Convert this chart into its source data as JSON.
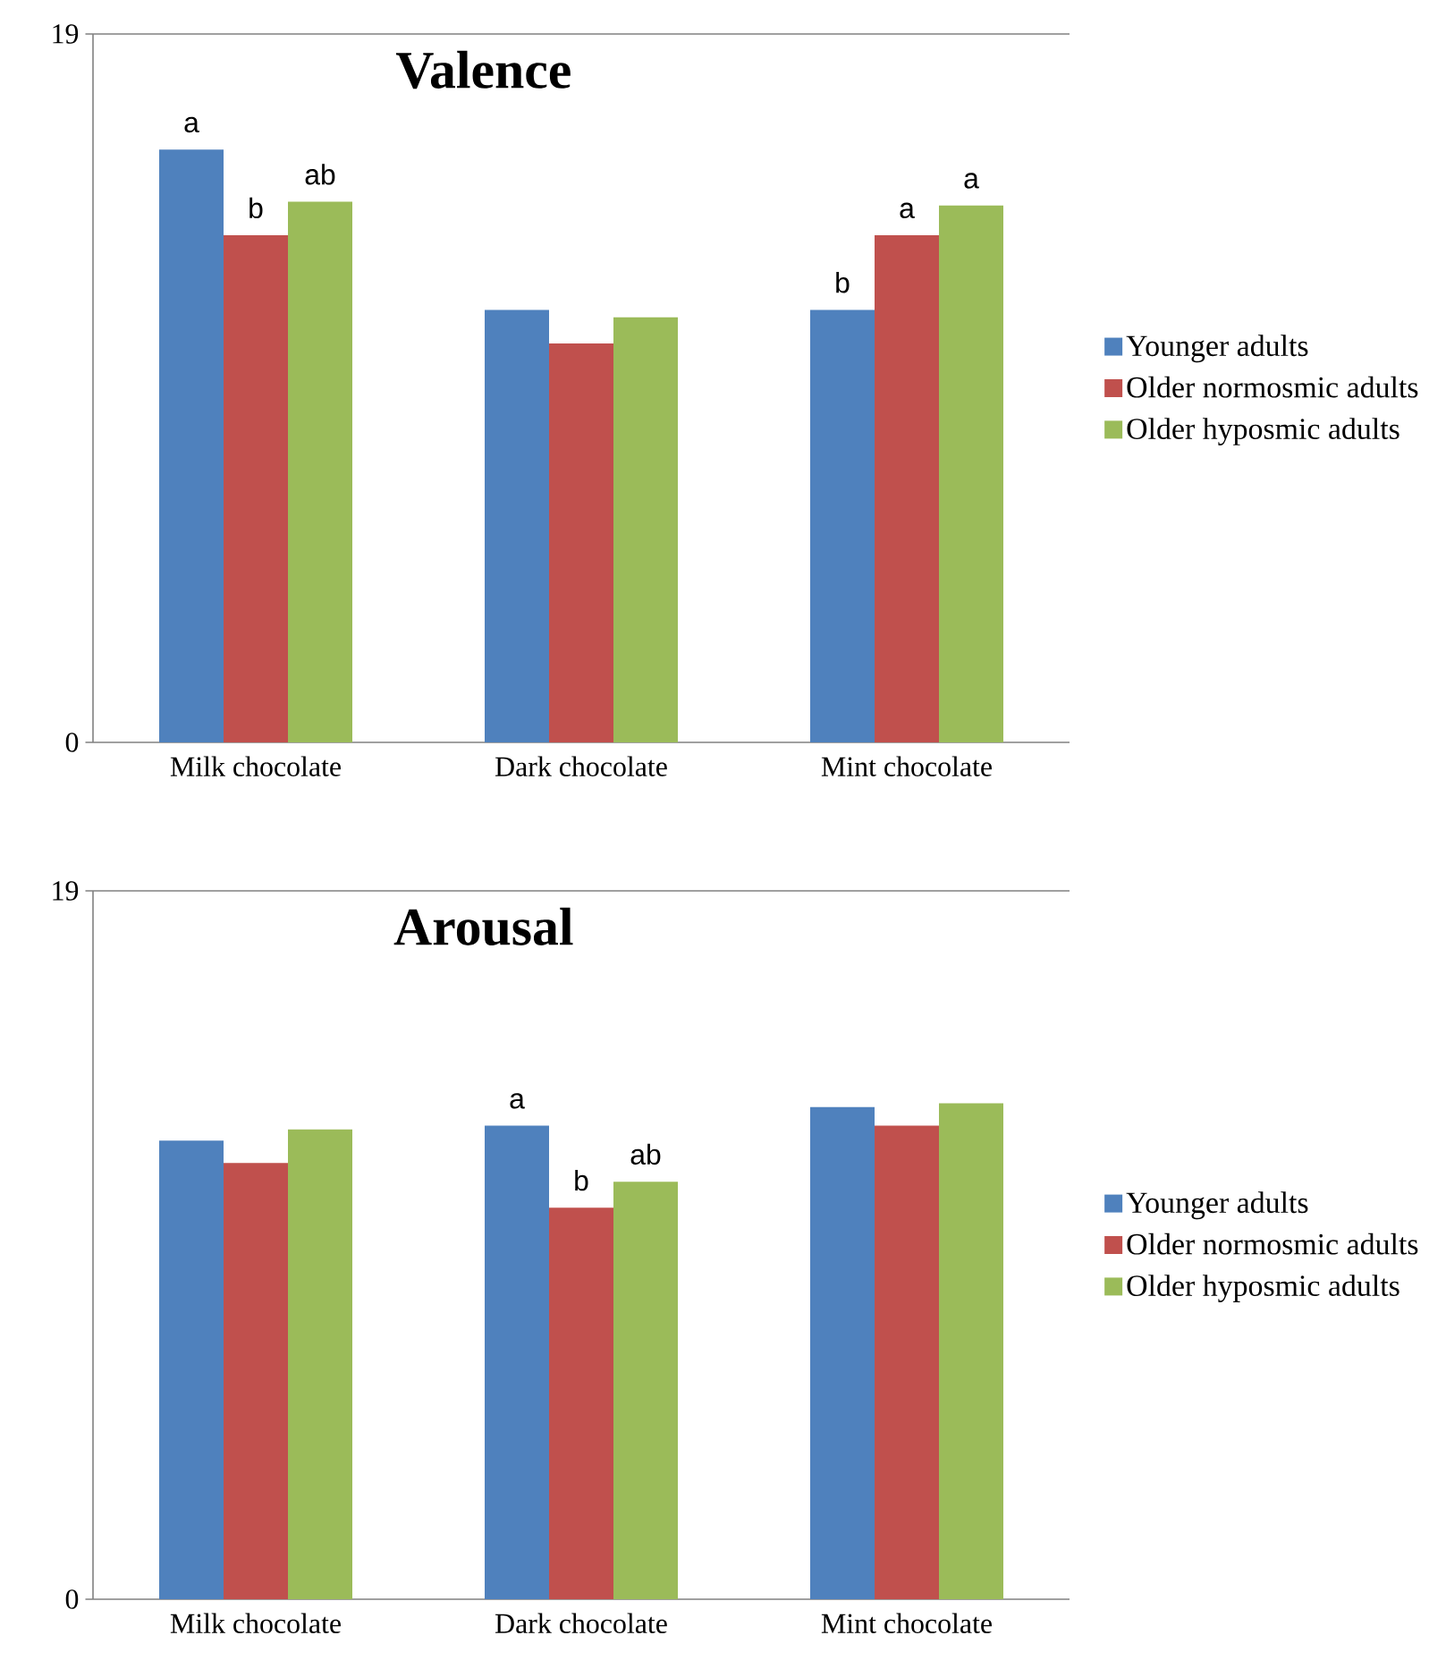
{
  "chart_data": [
    {
      "type": "bar",
      "title": "Valence",
      "categories": [
        "Milk chocolate",
        "Dark chocolate",
        "Mint chocolate"
      ],
      "series": [
        {
          "name": "Younger adults",
          "color": "#4f81bd",
          "values": [
            15.9,
            11.6,
            11.6
          ],
          "value_labels": [
            "a",
            null,
            "b"
          ]
        },
        {
          "name": "Older normosmic adults",
          "color": "#c0504d",
          "values": [
            13.6,
            10.7,
            13.6
          ],
          "value_labels": [
            "b",
            null,
            "a"
          ]
        },
        {
          "name": "Older hyposmic adults",
          "color": "#9bbb59",
          "values": [
            14.5,
            11.4,
            14.4
          ],
          "value_labels": [
            "ab",
            null,
            "a"
          ]
        }
      ],
      "ylim": [
        0,
        19
      ],
      "yticks": [
        0,
        19
      ],
      "legend": "right"
    },
    {
      "type": "bar",
      "title": "Arousal",
      "categories": [
        "Milk chocolate",
        "Dark chocolate",
        "Mint chocolate"
      ],
      "series": [
        {
          "name": "Younger adults",
          "color": "#4f81bd",
          "values": [
            12.3,
            12.7,
            13.2
          ],
          "value_labels": [
            null,
            "a",
            null
          ]
        },
        {
          "name": "Older normosmic adults",
          "color": "#c0504d",
          "values": [
            11.7,
            10.5,
            12.7
          ],
          "value_labels": [
            null,
            "b",
            null
          ]
        },
        {
          "name": "Older hyposmic adults",
          "color": "#9bbb59",
          "values": [
            12.6,
            11.2,
            13.3
          ],
          "value_labels": [
            null,
            "ab",
            null
          ]
        }
      ],
      "ylim": [
        0,
        19
      ],
      "yticks": [
        0,
        19
      ],
      "legend": "right"
    }
  ]
}
